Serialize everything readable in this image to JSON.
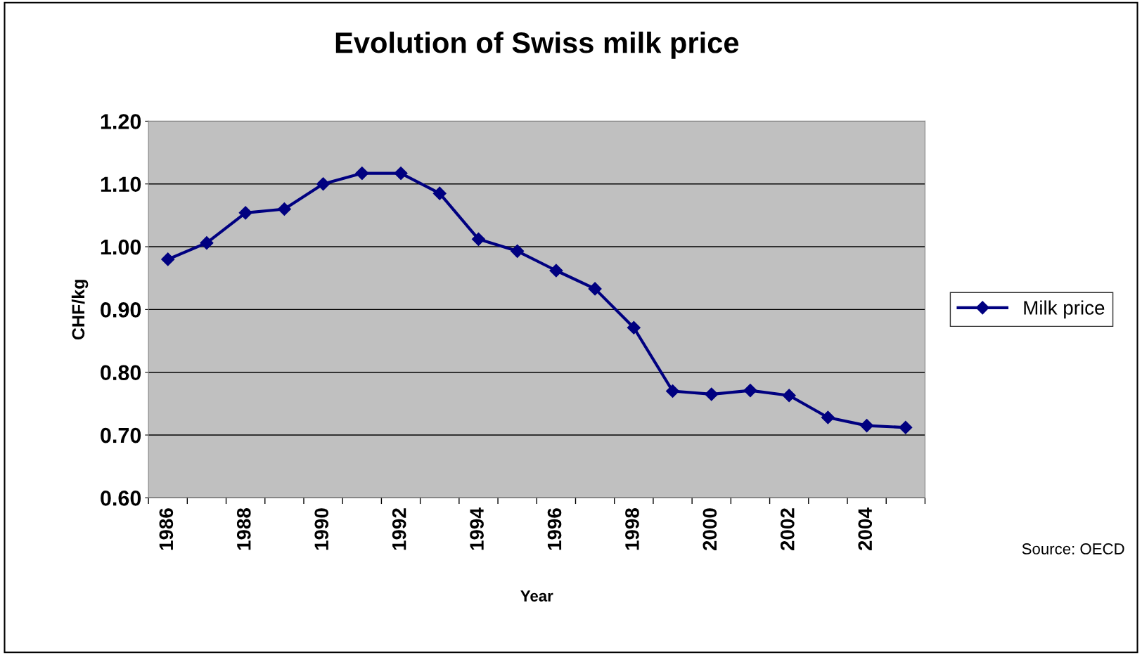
{
  "chart_data": {
    "type": "line",
    "title": "Evolution of Swiss milk price",
    "xlabel": "Year",
    "ylabel": "CHF/kg",
    "categories": [
      "1986",
      null,
      "1988",
      null,
      "1990",
      null,
      "1992",
      null,
      "1994",
      null,
      "1996",
      null,
      "1998",
      null,
      "2000",
      null,
      "2002",
      null,
      "2004",
      null
    ],
    "series": [
      {
        "name": "Milk price",
        "color": "#000080",
        "values": [
          0.98,
          1.006,
          1.054,
          1.06,
          1.1,
          1.117,
          1.117,
          1.085,
          1.012,
          0.993,
          0.962,
          0.933,
          0.871,
          0.77,
          0.765,
          0.771,
          0.763,
          0.728,
          0.715,
          0.712
        ]
      }
    ],
    "ylim": [
      0.6,
      1.2
    ],
    "yticks": [
      {
        "value": 0.6,
        "label": "0.60"
      },
      {
        "value": 0.7,
        "label": "0.70"
      },
      {
        "value": 0.8,
        "label": "0.80"
      },
      {
        "value": 0.9,
        "label": "0.90"
      },
      {
        "value": 1.0,
        "label": "1.00"
      },
      {
        "value": 1.1,
        "label": "1.10"
      },
      {
        "value": 1.2,
        "label": "1.20"
      }
    ],
    "grid": "y",
    "legend": "right",
    "marker": "diamond",
    "line_style": "solid",
    "annotations": [
      "Source: OECD"
    ]
  }
}
